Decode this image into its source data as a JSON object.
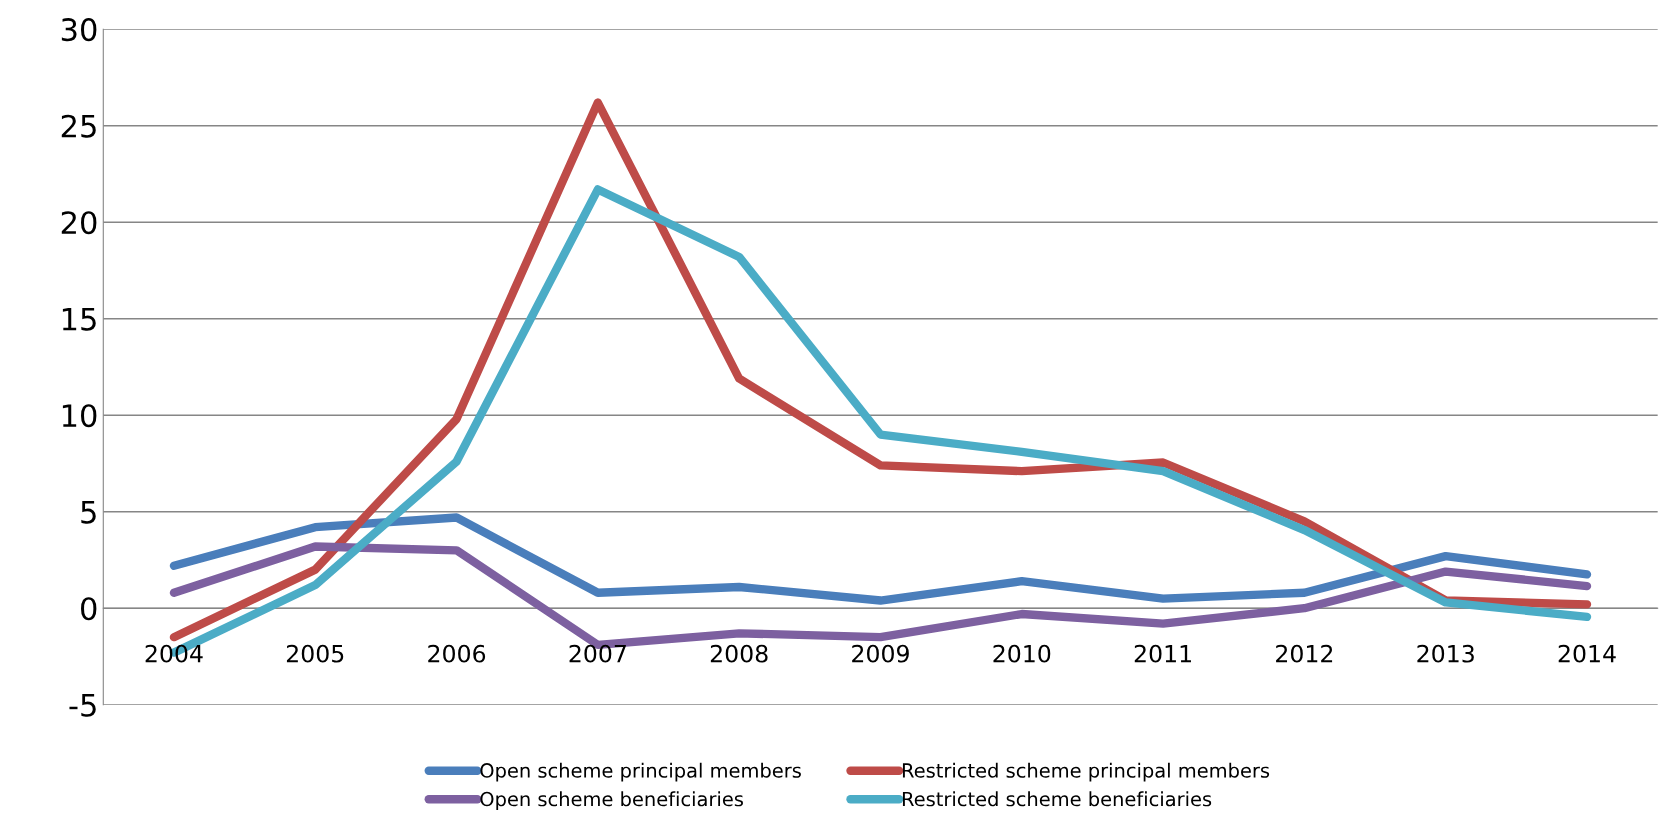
{
  "chart_data": {
    "type": "line",
    "categories": [
      "2004",
      "2005",
      "2006",
      "2007",
      "2008",
      "2009",
      "2010",
      "2011",
      "2012",
      "2013",
      "2014"
    ],
    "series": [
      {
        "name": "Open scheme principal members",
        "color": "#4a7ebb",
        "values": [
          2.2,
          4.2,
          4.7,
          0.8,
          1.1,
          0.4,
          1.4,
          0.5,
          0.8,
          2.7,
          1.75
        ]
      },
      {
        "name": "Restricted scheme principal members",
        "color": "#be4b48",
        "values": [
          -1.5,
          2.0,
          9.8,
          26.2,
          11.9,
          7.4,
          7.1,
          7.55,
          4.5,
          0.4,
          0.2
        ]
      },
      {
        "name": "Open scheme beneficiaries",
        "color": "#7d60a0",
        "values": [
          0.8,
          3.2,
          3.0,
          -1.9,
          -1.3,
          -1.5,
          -0.3,
          -0.8,
          0,
          1.9,
          1.15
        ]
      },
      {
        "name": "Restricted scheme beneficiaries",
        "color": "#4bacc6",
        "values": [
          -2.3,
          1.2,
          7.6,
          21.7,
          18.2,
          9.0,
          8.1,
          7.1,
          4.05,
          0.3,
          -0.45
        ]
      }
    ],
    "ylim": [
      -5,
      30
    ],
    "yticks": [
      -5,
      0,
      5,
      10,
      15,
      20,
      25,
      30
    ],
    "grid": "y",
    "legend": "bottom",
    "marker": "none",
    "line_style": "solid"
  }
}
